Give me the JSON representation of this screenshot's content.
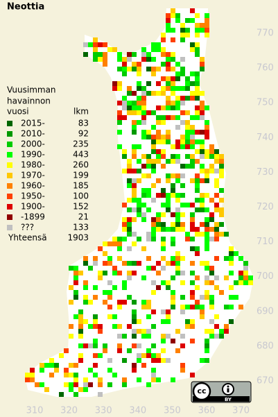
{
  "title": "Neottia",
  "legend": {
    "heading": [
      "Vuusimman",
      "havainnon",
      "vuosi"
    ],
    "count_heading": "lkm",
    "entries": [
      {
        "label": "2015-",
        "count": "83",
        "color": "#006600"
      },
      {
        "label": "2010-",
        "count": "92",
        "color": "#009900"
      },
      {
        "label": "2000-",
        "count": "235",
        "color": "#00cc00"
      },
      {
        "label": "1990-",
        "count": "443",
        "color": "#00ff00"
      },
      {
        "label": "1980-",
        "count": "260",
        "color": "#ffff00"
      },
      {
        "label": "1970-",
        "count": "199",
        "color": "#ffc800"
      },
      {
        "label": "1960-",
        "count": "185",
        "color": "#ff8000"
      },
      {
        "label": "1950-",
        "count": "100",
        "color": "#ff4000"
      },
      {
        "label": "1900-",
        "count": "152",
        "color": "#dd0000"
      },
      {
        "label": "-1899",
        "count": "21",
        "color": "#900000"
      },
      {
        "label": "???",
        "count": "133",
        "color": "#c0c0c0"
      }
    ],
    "total_label": "Yhteensä",
    "total": "1903"
  },
  "northing": [
    "770",
    "760",
    "750",
    "740",
    "730",
    "720",
    "710",
    "700",
    "690",
    "680",
    "670"
  ],
  "easting": [
    "310",
    "320",
    "330",
    "340",
    "350",
    "360",
    "370"
  ],
  "license": {
    "cc": "cc",
    "by": "BY"
  }
}
